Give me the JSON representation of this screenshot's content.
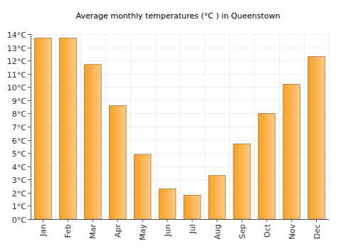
{
  "chart_data": {
    "type": "bar",
    "title": "Average monthly temperatures (°C ) in Queenstown",
    "categories": [
      "Jan",
      "Feb",
      "Mar",
      "Apr",
      "May",
      "Jun",
      "Jul",
      "Aug",
      "Sep",
      "Oct",
      "Nov",
      "Dec"
    ],
    "values": [
      13.7,
      13.7,
      11.7,
      8.6,
      4.9,
      2.3,
      1.8,
      3.3,
      5.7,
      8.0,
      10.2,
      12.3
    ],
    "color": "#fb9f20",
    "ylim": [
      0,
      14
    ],
    "yticks": [
      {
        "value": 0,
        "label": "0°C"
      },
      {
        "value": 1,
        "label": "1°C"
      },
      {
        "value": 2,
        "label": "2°C"
      },
      {
        "value": 3,
        "label": "3°C"
      },
      {
        "value": 4,
        "label": "4°C"
      },
      {
        "value": 5,
        "label": "5°C"
      },
      {
        "value": 6,
        "label": "6°C"
      },
      {
        "value": 7,
        "label": "7°C"
      },
      {
        "value": 8,
        "label": "8°C"
      },
      {
        "value": 9,
        "label": "9°C"
      },
      {
        "value": 10,
        "label": "10°C"
      },
      {
        "value": 11,
        "label": "11°C"
      },
      {
        "value": 12,
        "label": "12°C"
      },
      {
        "value": 13,
        "label": "13°C"
      },
      {
        "value": 14,
        "label": "14°C"
      }
    ],
    "grid": true
  }
}
